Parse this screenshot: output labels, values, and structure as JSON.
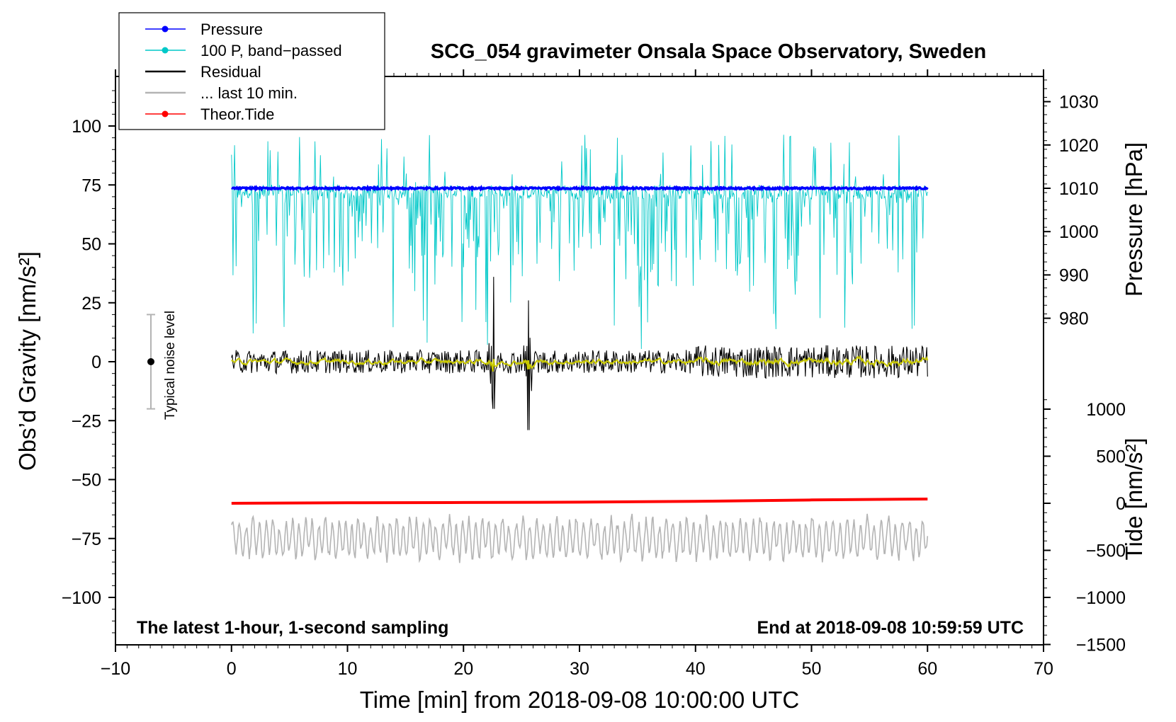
{
  "chart_data": {
    "type": "line",
    "title": "SCG_054 gravimeter Onsala Space Observatory, Sweden",
    "annotation_left": "The latest 1-hour, 1-second sampling",
    "annotation_right": "End at 2018-09-08 10:59:59 UTC",
    "xlabel": "Time [min] from 2018-09-08 10:00:00 UTC",
    "ylabel_left": "Obs’d Gravity [nm/s²]",
    "ylabel_right_top": "Pressure [hPa]",
    "ylabel_right_bottom": "Tide [nm/s²]",
    "noise_label": "Typical noise level",
    "noise_range": [
      -20,
      20
    ],
    "xlim": [
      -10,
      70
    ],
    "ylim_left": [
      -120,
      120
    ],
    "x_ticks": [
      "−10",
      "0",
      "10",
      "20",
      "30",
      "40",
      "50",
      "60",
      "70"
    ],
    "y_left_ticks": [
      "−100",
      "−75",
      "−50",
      "−25",
      "0",
      "25",
      "50",
      "75",
      "100"
    ],
    "y_pressure_ticks": [
      "980",
      "990",
      "1000",
      "1010",
      "1020",
      "1030"
    ],
    "y_tide_ticks": [
      "−1500",
      "−1000",
      "−500",
      "0",
      "500",
      "1000"
    ],
    "legend": [
      {
        "label": "Pressure",
        "color": "#0000ff",
        "style": "dot-line"
      },
      {
        "label": "100 P, band−passed",
        "color": "#00c8c8",
        "style": "dot-line"
      },
      {
        "label": "Residual",
        "color": "#000000",
        "style": "line"
      },
      {
        "label": "... last 10 min.",
        "color": "#b4b4b4",
        "style": "line"
      },
      {
        "label": "Theor.Tide",
        "color": "#ff0000",
        "style": "dot-line"
      }
    ],
    "series": [
      {
        "name": "Pressure",
        "unit": "hPa",
        "x_range": [
          0,
          60
        ],
        "value_approx": 1010
      },
      {
        "name": "100 P, band-passed",
        "unit": "nm/s²",
        "x_range": [
          0,
          60
        ],
        "baseline": 72,
        "typical_min": 30,
        "extremes": {
          "max": 104,
          "min": 5
        }
      },
      {
        "name": "Residual",
        "unit": "nm/s²",
        "x_range": [
          0,
          60
        ],
        "baseline": 0,
        "typical_amplitude": 5,
        "spikes": [
          {
            "x": 22.6,
            "max": 36,
            "min": -20
          },
          {
            "x": 25.6,
            "max": 26,
            "min": -29
          }
        ]
      },
      {
        "name": "Residual smoothed",
        "unit": "nm/s²",
        "x_range": [
          0,
          60
        ],
        "baseline": 0,
        "typical_amplitude": 2
      },
      {
        "name": "... last 10 min.",
        "unit": "nm/s²",
        "x_range": [
          0,
          60
        ],
        "baseline": -75,
        "range": [
          -87,
          -63
        ]
      },
      {
        "name": "Theor.Tide",
        "unit": "nm/s²",
        "x": [
          0,
          10,
          20,
          30,
          40,
          50,
          60
        ],
        "values": [
          0,
          5,
          8,
          12,
          20,
          35,
          45
        ]
      }
    ],
    "colors": {
      "pressure": "#0000ff",
      "band_passed": "#00c8c8",
      "residual": "#000000",
      "smoothed": "#c8c800",
      "last10": "#b4b4b4",
      "tide": "#ff0000",
      "noise_bar": "#b4b4b4"
    }
  }
}
